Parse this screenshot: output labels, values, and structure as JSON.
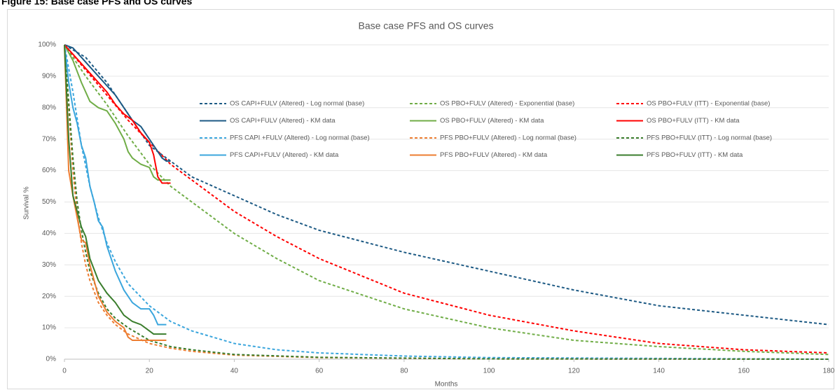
{
  "caption": "Figure 15: Base case PFS and OS curves",
  "chart_data": {
    "type": "line",
    "title": "Base case PFS and OS curves",
    "x_label": "Months",
    "y_label": "Survival %",
    "xlim": [
      0,
      180
    ],
    "xticks": [
      0,
      20,
      40,
      60,
      80,
      100,
      120,
      140,
      160,
      180
    ],
    "ylim": [
      0,
      100
    ],
    "yticks": [
      {
        "value": 0,
        "label": "0%"
      },
      {
        "value": 10,
        "label": "10%"
      },
      {
        "value": 20,
        "label": "20%"
      },
      {
        "value": 30,
        "label": "30%"
      },
      {
        "value": 40,
        "label": "40%"
      },
      {
        "value": 50,
        "label": "50%"
      },
      {
        "value": 60,
        "label": "60%"
      },
      {
        "value": 70,
        "label": "70%"
      },
      {
        "value": 80,
        "label": "80%"
      },
      {
        "value": 90,
        "label": "90%"
      },
      {
        "value": 100,
        "label": "100%"
      }
    ],
    "grid": true,
    "legend_columns": 3,
    "series": [
      {
        "name": "OS CAPI+FULV (Altered) - Log normal (base)",
        "color": "#1d5a84",
        "style": "dashed",
        "x": [
          0,
          5,
          10,
          15,
          20,
          25,
          30,
          40,
          50,
          60,
          80,
          100,
          120,
          140,
          160,
          180
        ],
        "values": [
          100,
          96,
          88,
          78,
          68,
          63,
          58,
          52,
          46,
          41,
          34,
          28,
          22,
          17,
          14,
          11
        ]
      },
      {
        "name": "OS PBO+FULV (Altered) - Exponential (base)",
        "color": "#70ad47",
        "style": "dashed",
        "x": [
          0,
          5,
          10,
          15,
          20,
          25,
          30,
          40,
          50,
          60,
          80,
          100,
          120,
          140,
          160,
          180
        ],
        "values": [
          100,
          90,
          81,
          71,
          62,
          55,
          50,
          40,
          32,
          25,
          16,
          10,
          6,
          4,
          2.5,
          1.5
        ]
      },
      {
        "name": "OS PBO+FULV (ITT) - Exponential (base)",
        "color": "#ff0000",
        "style": "dashed",
        "x": [
          0,
          5,
          10,
          15,
          20,
          25,
          30,
          40,
          50,
          60,
          80,
          100,
          120,
          140,
          160,
          180
        ],
        "values": [
          100,
          92,
          84,
          76,
          69,
          62,
          57,
          47,
          39,
          32,
          21,
          14,
          9,
          5,
          3,
          2
        ]
      },
      {
        "name": "OS CAPI+FULV (Altered) - KM data",
        "color": "#1d5a84",
        "style": "solid",
        "x": [
          0,
          2,
          4,
          6,
          8,
          10,
          12,
          14,
          16,
          18,
          20,
          22,
          23,
          24,
          25
        ],
        "values": [
          100,
          99,
          96,
          93,
          90,
          87,
          84,
          80,
          76,
          74,
          70,
          66,
          64,
          63,
          63
        ]
      },
      {
        "name": "OS PBO+FULV (Altered) - KM data",
        "color": "#70ad47",
        "style": "solid",
        "x": [
          0,
          2,
          4,
          6,
          8,
          10,
          12,
          14,
          15,
          16,
          18,
          20,
          21,
          22,
          24,
          25
        ],
        "values": [
          100,
          95,
          88,
          82,
          80,
          79,
          75,
          70,
          66,
          64,
          62,
          61,
          58,
          57,
          57,
          57
        ]
      },
      {
        "name": "OS PBO+FULV (ITT) - KM data",
        "color": "#ff0000",
        "style": "solid",
        "x": [
          0,
          2,
          4,
          6,
          8,
          10,
          12,
          14,
          16,
          18,
          20,
          21,
          22,
          23,
          24,
          25
        ],
        "values": [
          100,
          97,
          94,
          91,
          88,
          85,
          81,
          78,
          76,
          72,
          69,
          65,
          58,
          56,
          56,
          56
        ]
      },
      {
        "name": "PFS CAPI +FULV (Altered) - Log normal (base)",
        "color": "#3ba6dd",
        "style": "dashed",
        "x": [
          0,
          2,
          4,
          6,
          8,
          10,
          12,
          15,
          20,
          25,
          30,
          40,
          50,
          60,
          80,
          100,
          180
        ],
        "values": [
          100,
          85,
          68,
          55,
          45,
          37,
          31,
          24,
          17,
          12,
          9,
          5,
          3,
          2,
          1,
          0.5,
          0
        ]
      },
      {
        "name": "PFS PBO+FULV (Altered) - Log normal (base)",
        "color": "#ed7d31",
        "style": "dashed",
        "x": [
          0,
          1,
          2,
          3,
          4,
          5,
          6,
          8,
          10,
          12,
          15,
          20,
          25,
          30,
          40,
          60,
          100,
          180
        ],
        "values": [
          100,
          80,
          60,
          46,
          37,
          30,
          25,
          18,
          14,
          11,
          8,
          5,
          3.5,
          2.5,
          1.3,
          0.5,
          0.1,
          0
        ]
      },
      {
        "name": "PFS PBO+FULV (ITT) - Log normal (base)",
        "color": "#3a7d2c",
        "style": "dashed",
        "x": [
          0,
          1,
          2,
          3,
          4,
          5,
          6,
          8,
          10,
          12,
          15,
          20,
          25,
          30,
          40,
          60,
          100,
          180
        ],
        "values": [
          100,
          82,
          64,
          50,
          41,
          34,
          28,
          21,
          16,
          13,
          10,
          6,
          4,
          3,
          1.5,
          0.6,
          0.1,
          0
        ]
      },
      {
        "name": "PFS CAPI+FULV (Altered) - KM data",
        "color": "#3ba6dd",
        "style": "solid",
        "x": [
          0,
          1,
          2,
          3,
          4,
          5,
          6,
          7,
          8,
          9,
          10,
          12,
          14,
          16,
          18,
          20,
          21,
          22,
          23,
          24
        ],
        "values": [
          100,
          88,
          80,
          75,
          68,
          64,
          55,
          50,
          44,
          42,
          36,
          28,
          22,
          18,
          16,
          16,
          14,
          11,
          11,
          11
        ]
      },
      {
        "name": "PFS PBO+FULV (Altered) - KM data",
        "color": "#ed7d31",
        "style": "solid",
        "x": [
          0,
          1,
          2,
          3,
          4,
          5,
          6,
          8,
          10,
          12,
          14,
          15,
          16,
          18,
          20,
          24
        ],
        "values": [
          100,
          60,
          52,
          45,
          38,
          37,
          30,
          20,
          15,
          12,
          10,
          7,
          6,
          6,
          6,
          6
        ]
      },
      {
        "name": "PFS PBO+FULV (ITT) - KM data",
        "color": "#3a7d2c",
        "style": "solid",
        "x": [
          0,
          1,
          2,
          3,
          4,
          5,
          6,
          8,
          10,
          12,
          14,
          16,
          18,
          20,
          21,
          24
        ],
        "values": [
          100,
          70,
          52,
          47,
          42,
          39,
          32,
          25,
          21,
          18,
          14,
          12,
          11,
          9,
          8,
          8
        ]
      }
    ]
  }
}
